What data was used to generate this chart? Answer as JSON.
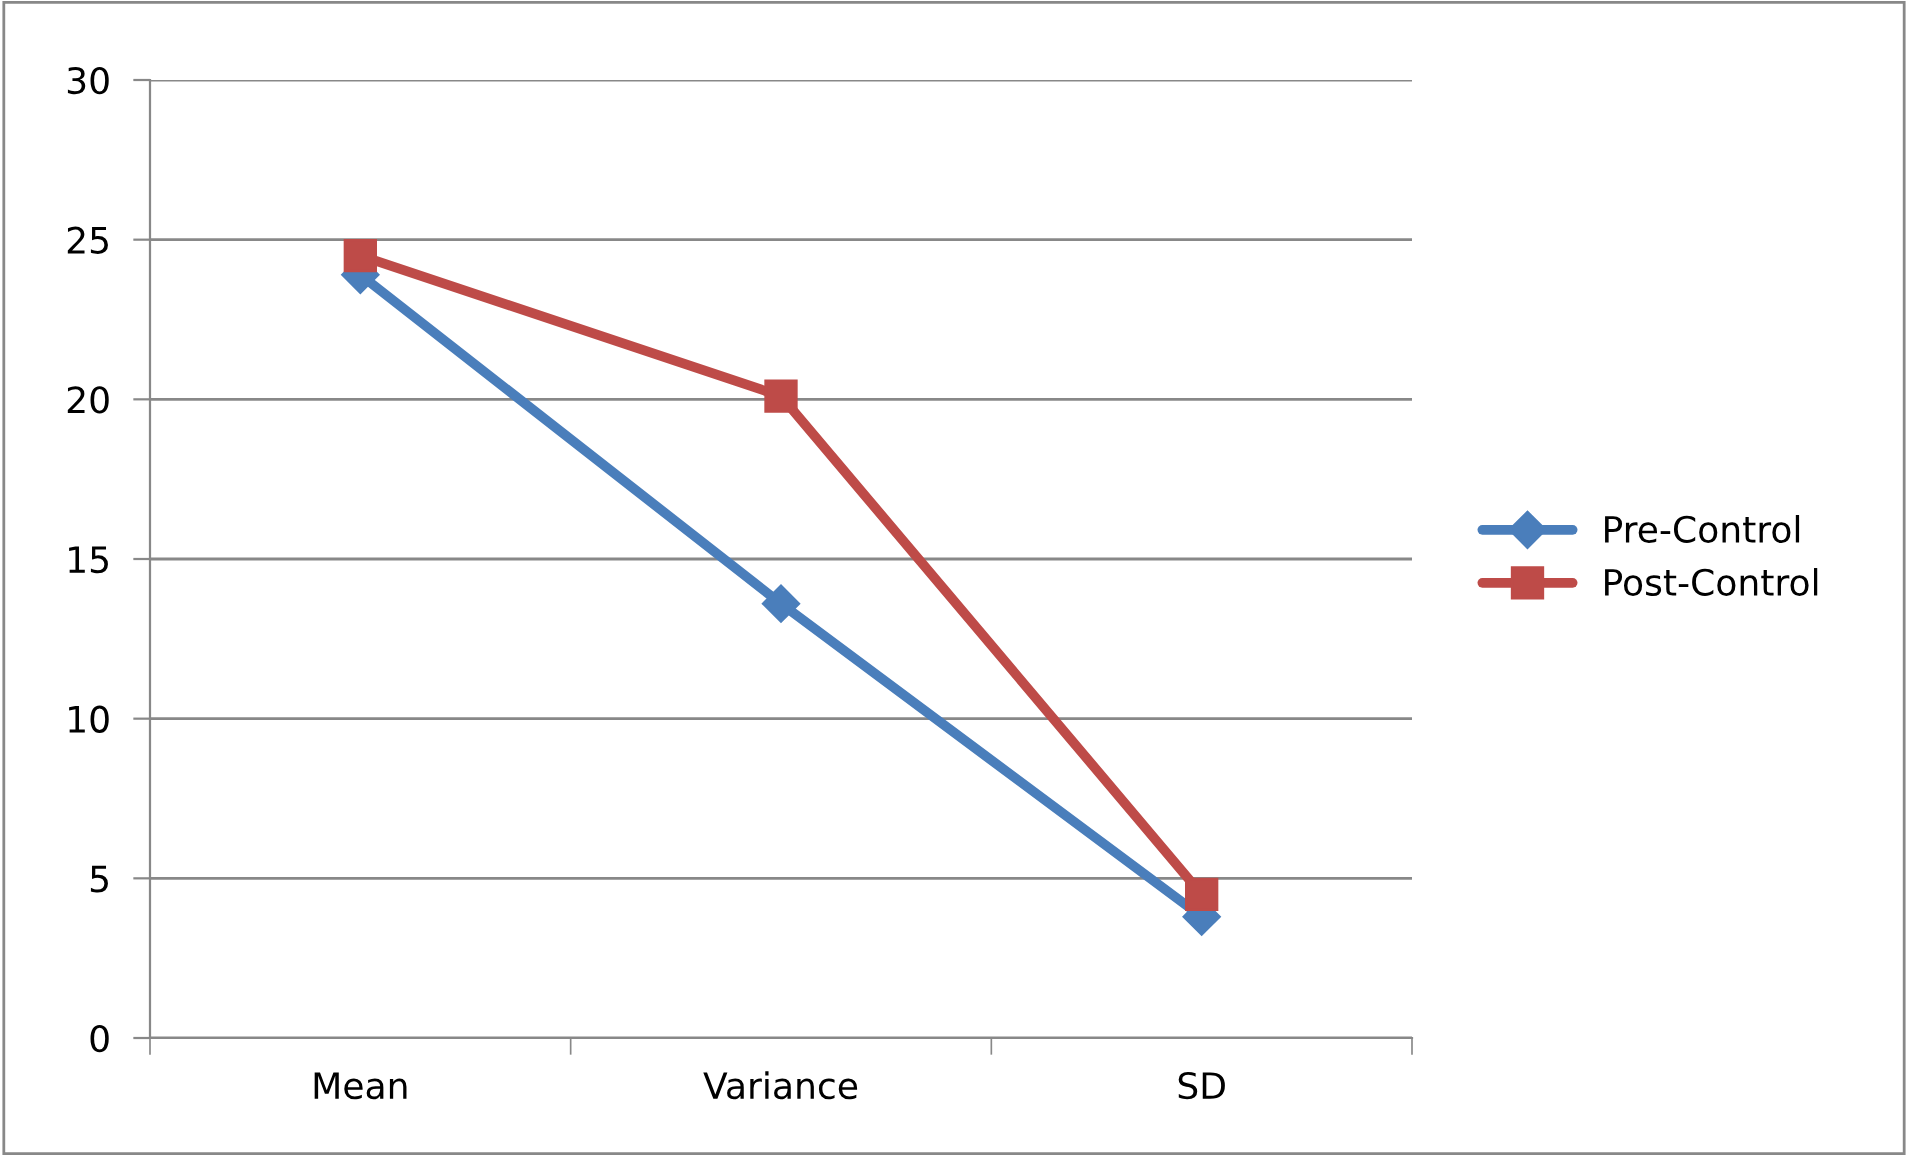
{
  "chart_data": {
    "type": "line",
    "categories": [
      "Mean",
      "Variance",
      "SD"
    ],
    "series": [
      {
        "name": "Pre-Control",
        "color": "#4a7ebb",
        "marker": "diamond",
        "values": [
          23.9,
          13.6,
          3.8
        ]
      },
      {
        "name": "Post-Control",
        "color": "#be4b48",
        "marker": "square",
        "values": [
          24.5,
          20.1,
          4.5
        ]
      }
    ],
    "ylim": [
      0,
      30
    ],
    "yticks": [
      0,
      5,
      10,
      15,
      20,
      25,
      30
    ],
    "grid": "y",
    "legend": "right",
    "line_style": "solid"
  }
}
